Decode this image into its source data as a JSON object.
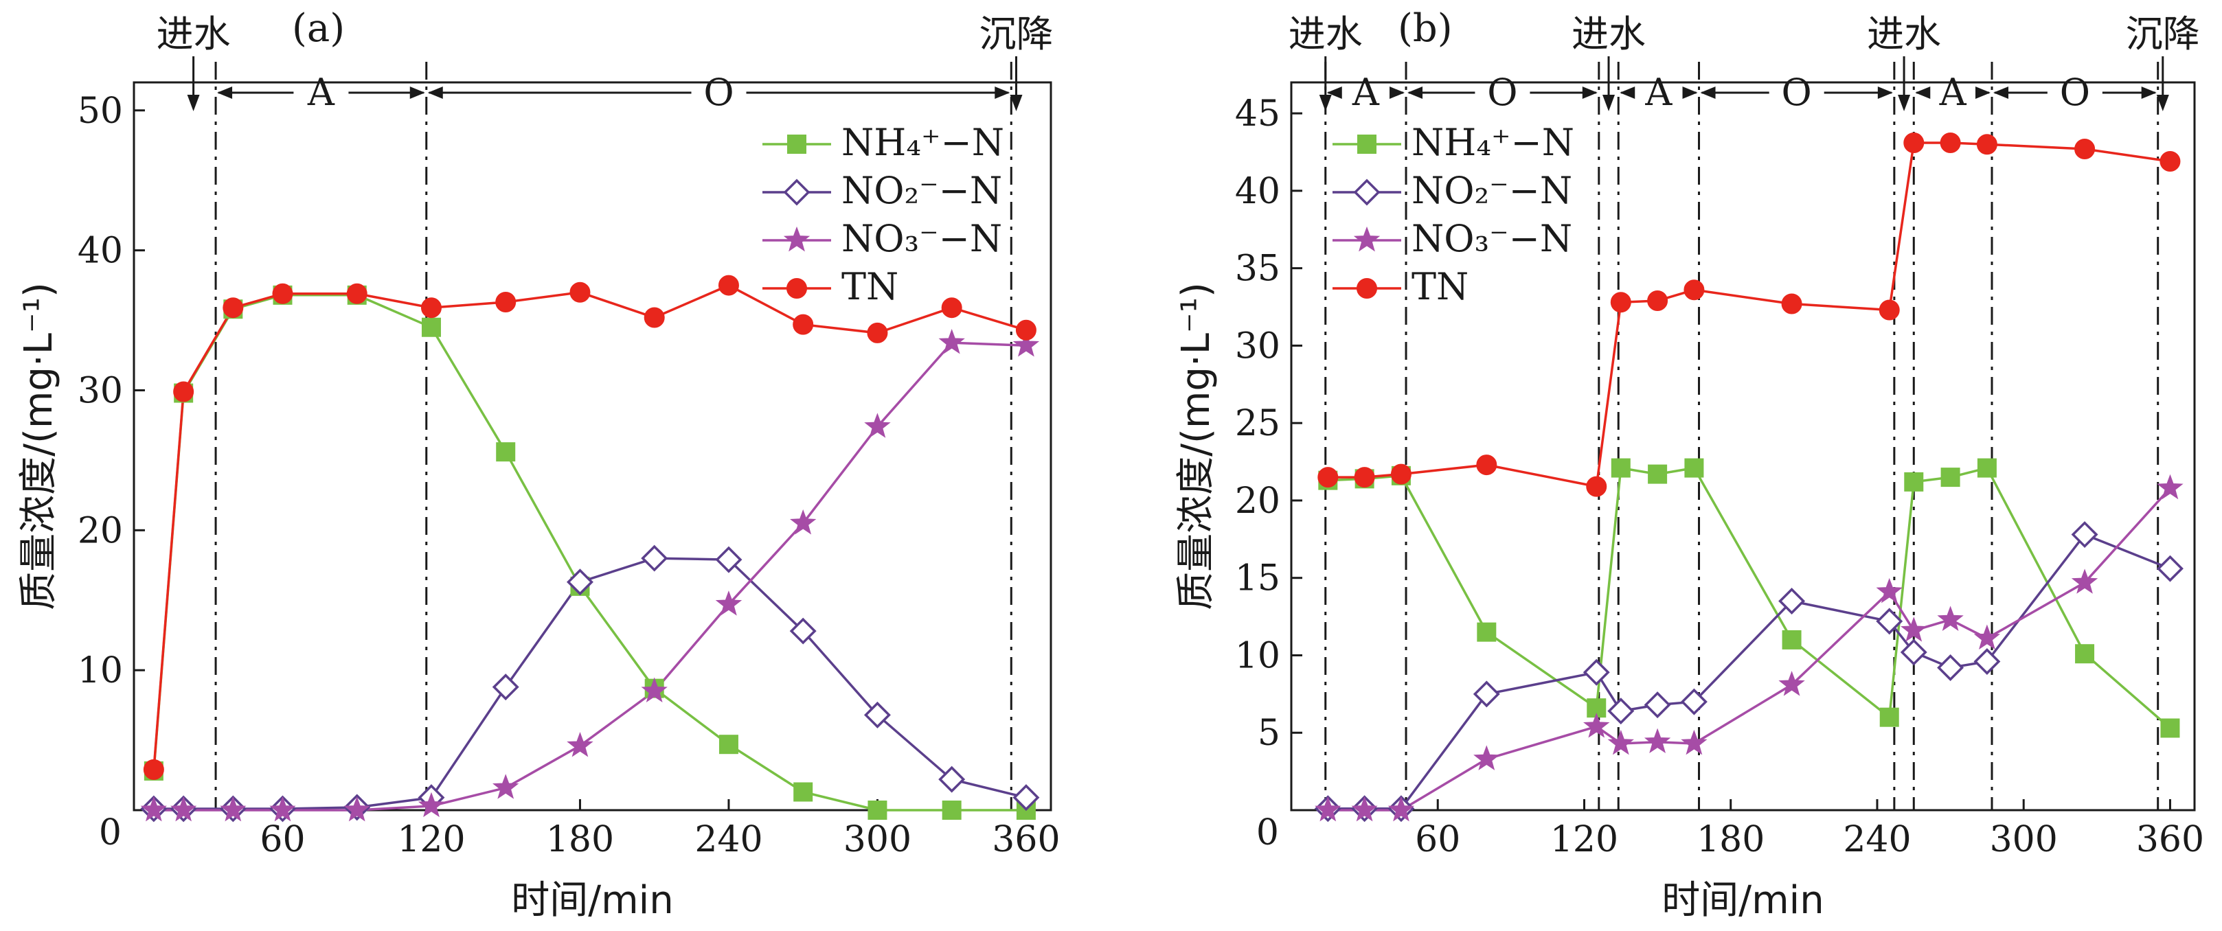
{
  "chart_data": [
    {
      "type": "line",
      "panel_label": "(a)",
      "xlabel": "时间/min",
      "ylabel": "质量浓度/(mg·L⁻¹)",
      "xlim": [
        0,
        370
      ],
      "ylim": [
        0,
        52
      ],
      "x_ticks": [
        0,
        60,
        120,
        180,
        240,
        300,
        360
      ],
      "y_ticks": [
        10,
        20,
        30,
        40,
        50
      ],
      "legend_position": "top-right",
      "phase_lines": [
        33,
        118,
        354
      ],
      "phase_labels": [
        {
          "text": "A",
          "from": 33,
          "to": 118
        },
        {
          "text": "O",
          "from": 118,
          "to": 354
        }
      ],
      "events": [
        {
          "text": "进水",
          "x": 24
        },
        {
          "text": "沉降",
          "x": 356
        }
      ],
      "series": [
        {
          "name": "NH₄⁺−N",
          "color": "#78c043",
          "marker": "square",
          "x": [
            8,
            20,
            40,
            60,
            90,
            120,
            150,
            180,
            210,
            240,
            270,
            300,
            330,
            360
          ],
          "values": [
            2.8,
            29.8,
            35.8,
            36.8,
            36.8,
            34.5,
            25.6,
            16.0,
            8.7,
            4.7,
            1.3,
            0.0,
            0.0,
            0.0
          ]
        },
        {
          "name": "NO₂⁻−N",
          "color": "#5b3f8c",
          "marker": "diamond",
          "x": [
            8,
            20,
            40,
            60,
            90,
            120,
            150,
            180,
            210,
            240,
            270,
            300,
            330,
            360
          ],
          "values": [
            0.1,
            0.1,
            0.1,
            0.1,
            0.2,
            0.9,
            8.8,
            16.3,
            18.0,
            17.9,
            12.8,
            6.8,
            2.2,
            0.9
          ]
        },
        {
          "name": "NO₃⁻−N",
          "color": "#a64ca6",
          "marker": "star",
          "x": [
            8,
            20,
            40,
            60,
            90,
            120,
            150,
            180,
            210,
            240,
            270,
            300,
            330,
            360
          ],
          "values": [
            0.0,
            0.0,
            0.0,
            0.0,
            0.0,
            0.3,
            1.6,
            4.6,
            8.5,
            14.7,
            20.5,
            27.4,
            33.4,
            33.2
          ]
        },
        {
          "name": "TN",
          "color": "#e8261c",
          "marker": "circle",
          "x": [
            8,
            20,
            40,
            60,
            90,
            120,
            150,
            180,
            210,
            240,
            270,
            300,
            330,
            360
          ],
          "values": [
            2.9,
            29.9,
            35.9,
            36.9,
            36.9,
            35.9,
            36.3,
            37.0,
            35.2,
            37.5,
            34.7,
            34.1,
            35.9,
            34.3
          ]
        }
      ]
    },
    {
      "type": "line",
      "panel_label": "(b)",
      "xlabel": "时间/min",
      "ylabel": "质量浓度/(mg·L⁻¹)",
      "xlim": [
        0,
        370
      ],
      "ylim": [
        0,
        47
      ],
      "x_ticks": [
        0,
        60,
        120,
        180,
        240,
        300,
        360
      ],
      "y_ticks": [
        5,
        10,
        15,
        20,
        25,
        30,
        35,
        40,
        45
      ],
      "legend_position": "top-left",
      "phase_lines": [
        14,
        47,
        126,
        134,
        167,
        247,
        255,
        287,
        355
      ],
      "phase_labels": [
        {
          "text": "A",
          "from": 14,
          "to": 47
        },
        {
          "text": "O",
          "from": 47,
          "to": 126
        },
        {
          "text": "A",
          "from": 134,
          "to": 167
        },
        {
          "text": "O",
          "from": 167,
          "to": 247
        },
        {
          "text": "A",
          "from": 255,
          "to": 287
        },
        {
          "text": "O",
          "from": 287,
          "to": 355
        }
      ],
      "events": [
        {
          "text": "进水",
          "x": 14
        },
        {
          "text": "进水",
          "x": 130
        },
        {
          "text": "进水",
          "x": 251
        },
        {
          "text": "沉降",
          "x": 357
        }
      ],
      "series": [
        {
          "name": "NH₄⁺−N",
          "color": "#78c043",
          "marker": "square",
          "x": [
            15,
            30,
            45,
            80,
            125,
            135,
            150,
            165,
            205,
            245,
            255,
            270,
            285,
            325,
            360
          ],
          "values": [
            21.3,
            21.4,
            21.6,
            11.5,
            6.6,
            22.1,
            21.7,
            22.1,
            11.0,
            6.0,
            21.2,
            21.5,
            22.1,
            10.1,
            5.3
          ]
        },
        {
          "name": "NO₂⁻−N",
          "color": "#5b3f8c",
          "marker": "diamond",
          "x": [
            15,
            30,
            45,
            80,
            125,
            135,
            150,
            165,
            205,
            245,
            255,
            270,
            285,
            325,
            360
          ],
          "values": [
            0.1,
            0.1,
            0.1,
            7.5,
            8.9,
            6.4,
            6.8,
            7.0,
            13.5,
            12.2,
            10.2,
            9.2,
            9.6,
            17.8,
            15.6
          ]
        },
        {
          "name": "NO₃⁻−N",
          "color": "#a64ca6",
          "marker": "star",
          "x": [
            15,
            30,
            45,
            80,
            125,
            135,
            150,
            165,
            205,
            245,
            255,
            270,
            285,
            325,
            360
          ],
          "values": [
            0.0,
            0.0,
            0.0,
            3.3,
            5.4,
            4.3,
            4.4,
            4.3,
            8.1,
            14.1,
            11.6,
            12.3,
            11.1,
            14.7,
            20.8
          ]
        },
        {
          "name": "TN",
          "color": "#e8261c",
          "marker": "circle",
          "x": [
            15,
            30,
            45,
            80,
            125,
            135,
            150,
            165,
            205,
            245,
            255,
            270,
            285,
            325,
            360
          ],
          "values": [
            21.5,
            21.5,
            21.7,
            22.3,
            20.9,
            32.8,
            32.9,
            33.6,
            32.7,
            32.3,
            43.1,
            43.1,
            43.0,
            42.7,
            41.9
          ]
        }
      ]
    }
  ]
}
